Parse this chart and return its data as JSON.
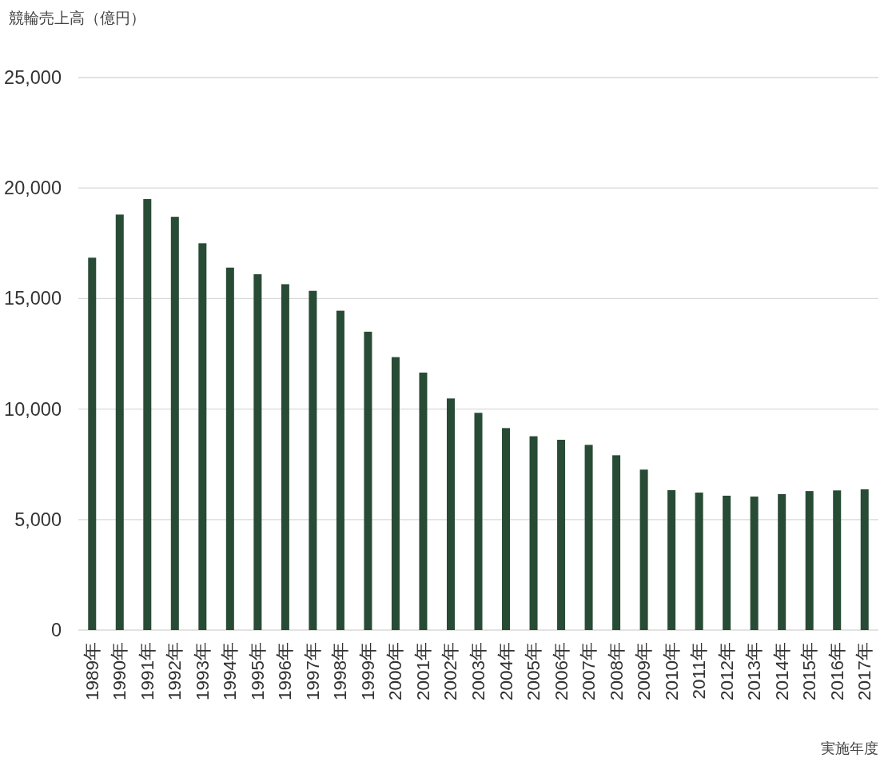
{
  "chart_data": {
    "type": "bar",
    "ylabel": "競輪売上高（億円）",
    "xlabel": "実施年度",
    "categories": [
      "1989年",
      "1990年",
      "1991年",
      "1992年",
      "1993年",
      "1994年",
      "1995年",
      "1996年",
      "1997年",
      "1998年",
      "1999年",
      "2000年",
      "2001年",
      "2002年",
      "2003年",
      "2004年",
      "2005年",
      "2006年",
      "2007年",
      "2008年",
      "2009年",
      "2010年",
      "2011年",
      "2012年",
      "2013年",
      "2014年",
      "2015年",
      "2016年",
      "2017年"
    ],
    "values": [
      16850,
      18800,
      19500,
      18700,
      17500,
      16400,
      16100,
      15650,
      15350,
      14450,
      13500,
      12350,
      11650,
      10480,
      9830,
      9140,
      8770,
      8610,
      8380,
      7910,
      7260,
      6330,
      6220,
      6080,
      6040,
      6150,
      6290,
      6320,
      6370
    ],
    "color": "#284b35",
    "ylim": [
      0,
      25000
    ],
    "yticks": [
      0,
      {
        "value": 5000,
        "label": "5,000"
      },
      {
        "value": 10000,
        "label": "10,000"
      },
      {
        "value": 15000,
        "label": "15,000"
      },
      {
        "value": 20000,
        "label": "20,000"
      },
      {
        "value": 25000,
        "label": "25,000"
      }
    ],
    "grid": "y"
  }
}
